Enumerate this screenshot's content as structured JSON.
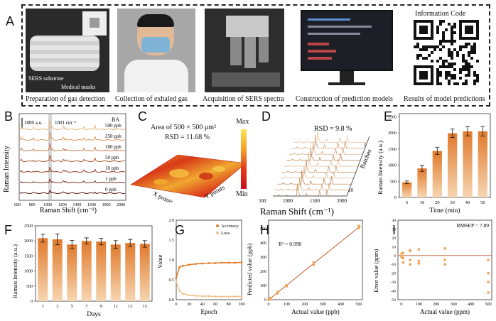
{
  "panelA": {
    "label": "A",
    "captions": [
      "Preparation of gas detection",
      "Collection of exhaled gas",
      "Acquisition of SERS spectra",
      "Construction of prediction models",
      "Results of model predictions"
    ],
    "mask_labels": {
      "sers": "SERS substrate",
      "masks": "Medical masks"
    },
    "info_code_title": "Information Code"
  },
  "panelB": {
    "label": "B",
    "scale_bar": "1000 a.u.",
    "peak_label": "1001 cm⁻¹",
    "tag": "BA",
    "series": [
      "500 ppb",
      "250 ppb",
      "100 ppb",
      "50 ppb",
      "10 ppb",
      "1 ppb",
      "0 ppb"
    ],
    "colors": [
      "#e7b98a",
      "#dc9a65",
      "#c8774a",
      "#b15c38",
      "#96452b",
      "#7a3221",
      "#5a1f17"
    ],
    "xlabel": "Raman Shift (cm⁻¹)",
    "ylabel": "Raman Intensity",
    "xticks": [
      "600",
      "800",
      "1000",
      "1200",
      "1400",
      "1600",
      "1800",
      "2000"
    ]
  },
  "panelC": {
    "label": "C",
    "title": "Area of 500 × 500 μm²",
    "rsd": "RSD = 11.68 %",
    "x_axis": "X points",
    "y_axis": "Y points",
    "cbar_max": "Max",
    "cbar_min": "Min"
  },
  "panelD": {
    "label": "D",
    "rsd": "RSD = 9.8 %",
    "xlabel": "Raman Shift (cm⁻¹)",
    "xticks": [
      "500",
      "1000",
      "1500",
      "2000"
    ],
    "batch_axis": "Batches",
    "batch_ticks": [
      "1",
      "10"
    ]
  },
  "panelE": {
    "label": "E",
    "ylabel": "Raman Intensity (a.u.)",
    "xlabel": "Time (min)",
    "yticks": [
      "0",
      "500",
      "1000",
      "1500",
      "2000",
      "2500"
    ]
  },
  "panelF": {
    "label": "F",
    "ylabel": "Raman Intensity (a.u.)",
    "xlabel": "Days",
    "yticks": [
      "0",
      "500",
      "1000",
      "1500",
      "2000",
      "2500"
    ]
  },
  "panelG": {
    "label": "G",
    "ylabel": "Value",
    "xlabel": "Epoch",
    "legend": [
      "Accuracy",
      "Loss"
    ],
    "yticks": [
      "0.0",
      "0.5",
      "1.0",
      "1.5",
      "2.0"
    ],
    "xticks": [
      "0",
      "20",
      "40",
      "60",
      "80",
      "100"
    ]
  },
  "panelH": {
    "label": "H",
    "ylabel": "Predicted value (ppb)",
    "xlabel": "Actual value (ppb)",
    "r2": "R² = 0.998",
    "yticks": [
      "0",
      "100",
      "200",
      "300",
      "400",
      "500"
    ],
    "xticks": [
      "0",
      "100",
      "200",
      "300",
      "400",
      "500"
    ]
  },
  "panelI": {
    "label": "I",
    "ylabel": "Error value (ppm)",
    "xlabel": "Actual value (ppm)",
    "rmsep": "RMSEP = 7.89",
    "yticks": [
      "40",
      "30",
      "20",
      "10",
      "0",
      "-10",
      "-20",
      "-30",
      "-40",
      "-50"
    ],
    "xticks": [
      "0",
      "100",
      "200",
      "300",
      "400",
      "500"
    ]
  },
  "colors": {
    "bar": "#ec9a4f",
    "bar_top": "#e07a2c",
    "line": "#c0562a",
    "surface_dark": "#d42a17",
    "surface_light": "#f5b22e"
  },
  "chart_data": [
    {
      "type": "bar",
      "panel": "E",
      "categories": [
        "5",
        "10",
        "20",
        "30",
        "40",
        "50"
      ],
      "values": [
        470,
        900,
        1440,
        1990,
        2050,
        2050
      ],
      "errors": [
        40,
        90,
        110,
        130,
        140,
        150
      ],
      "xlabel": "Time (min)",
      "ylabel": "Raman Intensity (a.u.)",
      "ylim": [
        0,
        2600
      ]
    },
    {
      "type": "bar",
      "panel": "F",
      "categories": [
        "1",
        "3",
        "5",
        "7",
        "9",
        "11",
        "13",
        "15"
      ],
      "values": [
        2090,
        2050,
        1880,
        2000,
        1980,
        1880,
        1930,
        1900
      ],
      "errors": [
        130,
        180,
        140,
        100,
        110,
        130,
        120,
        110
      ],
      "xlabel": "Days",
      "ylabel": "Raman Intensity (a.u.)",
      "ylim": [
        0,
        2500
      ]
    },
    {
      "type": "line",
      "panel": "G",
      "x": [
        0,
        5,
        10,
        20,
        30,
        40,
        50,
        60,
        70,
        80,
        90,
        100
      ],
      "series": [
        {
          "name": "Accuracy",
          "values": [
            0.55,
            0.82,
            0.85,
            0.88,
            0.9,
            0.91,
            0.92,
            0.92,
            0.93,
            0.93,
            0.93,
            0.94
          ]
        },
        {
          "name": "Loss",
          "values": [
            0.45,
            0.22,
            0.15,
            0.11,
            0.1,
            0.09,
            0.09,
            0.08,
            0.08,
            0.08,
            0.08,
            0.08
          ]
        }
      ],
      "xlabel": "Epoch",
      "ylabel": "Value",
      "xlim": [
        0,
        100
      ],
      "ylim": [
        0,
        2.0
      ]
    },
    {
      "type": "scatter",
      "panel": "H",
      "x": [
        1,
        1,
        10,
        10,
        50,
        50,
        100,
        100,
        250,
        250,
        500,
        500
      ],
      "y": [
        3,
        -2,
        12,
        8,
        55,
        45,
        102,
        95,
        262,
        245,
        520,
        505
      ],
      "xlabel": "Actual value (ppb)",
      "ylabel": "Predicted value (ppb)",
      "xlim": [
        0,
        520
      ],
      "ylim": [
        0,
        560
      ]
    },
    {
      "type": "scatter",
      "panel": "I",
      "x": [
        1,
        1,
        1,
        10,
        10,
        10,
        50,
        50,
        50,
        50,
        100,
        100,
        100,
        250,
        250,
        250,
        500,
        500,
        500,
        500
      ],
      "y": [
        2,
        -1,
        -2,
        3,
        -3,
        -8,
        5,
        -5,
        -10,
        6,
        7,
        -6,
        -9,
        8,
        -5,
        -10,
        -5,
        -20,
        -30,
        -42
      ],
      "xlabel": "Actual value (ppm)",
      "ylabel": "Error value (ppm)",
      "xlim": [
        -20,
        520
      ],
      "ylim": [
        -50,
        40
      ]
    }
  ]
}
